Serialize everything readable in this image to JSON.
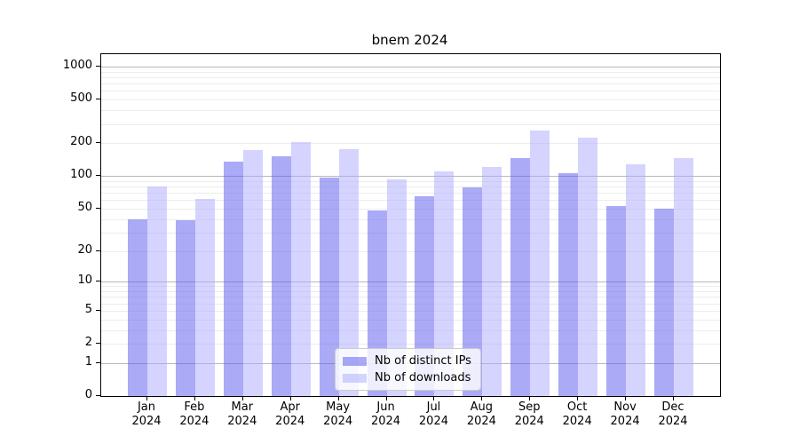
{
  "title": "bnem 2024",
  "chart_data": {
    "type": "bar",
    "title": "bnem 2024",
    "xlabel": "",
    "ylabel": "",
    "scale": "log1p",
    "ylim": [
      0,
      1000
    ],
    "yticks": [
      0,
      1,
      2,
      5,
      10,
      20,
      50,
      100,
      200,
      500,
      1000
    ],
    "grid": "on",
    "grid_minor_color": "#ececec",
    "grid_major_color": "#b8b8b8",
    "spine_color": "#000000",
    "fill_alpha": 0.5,
    "legend_position": "inside-bottom-center",
    "categories": [
      "Jan 2024",
      "Feb 2024",
      "Mar 2024",
      "Apr 2024",
      "May 2024",
      "Jun 2024",
      "Jul 2024",
      "Aug 2024",
      "Sep 2024",
      "Oct 2024",
      "Nov 2024",
      "Dec 2024"
    ],
    "series": [
      {
        "name": "Nb of distinct IPs",
        "color": "#5555ee",
        "values": [
          40,
          39,
          136,
          153,
          97,
          48,
          65,
          78,
          146,
          107,
          53,
          50
        ]
      },
      {
        "name": "Nb of downloads",
        "color": "#aaaaff",
        "values": [
          80,
          62,
          172,
          204,
          176,
          93,
          111,
          122,
          260,
          225,
          128,
          146
        ]
      }
    ]
  }
}
